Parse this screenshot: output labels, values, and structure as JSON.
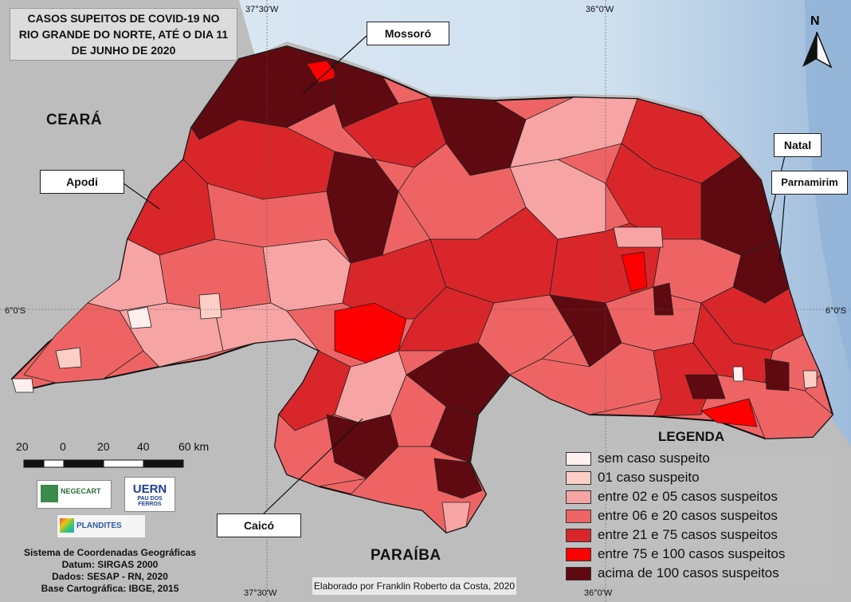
{
  "title_lines": [
    "CASOS SUPEITOS DE COVID-19 NO",
    "RIO GRANDE DO NORTE, ATÉ O DIA 11",
    "DE JUNHO DE 2020"
  ],
  "coordinates": {
    "lon_left_top": "37°30'W",
    "lon_right_top": "36°0'W",
    "lon_left_bottom": "37°30'W",
    "lon_right_bottom": "36°0'W",
    "lat_left": "6°0'S",
    "lat_right": "6°0'S"
  },
  "north_arrow": "N",
  "city_labels": {
    "mossoro": "Mossoró",
    "apodi": "Apodi",
    "natal": "Natal",
    "parnamirim": "Parnamirim",
    "caico": "Caicó"
  },
  "state_labels": {
    "ceara": "CEARÁ",
    "paraiba": "PARAÍBA"
  },
  "legend": {
    "title": "LEGENDA",
    "items": [
      {
        "label": "sem caso suspeito",
        "color": "#fdf0ee"
      },
      {
        "label": "01 caso suspeito",
        "color": "#fbcfc5"
      },
      {
        "label": "entre 02 e 05 casos suspeitos",
        "color": "#f7a4a4"
      },
      {
        "label": "entre 06 e 20 casos suspeitos",
        "color": "#ee6464"
      },
      {
        "label": "entre 21 e 75 casos suspeitos",
        "color": "#d9262a"
      },
      {
        "label": "entre 75 e 100 casos suspeitos",
        "color": "#ff0000"
      },
      {
        "label": "acima de 100 casos suspeitos",
        "color": "#5e0a10"
      }
    ]
  },
  "scale_bar": {
    "labels": [
      "20",
      "0",
      "20",
      "40",
      "60 km"
    ]
  },
  "logos": {
    "negecart": "NEGECART",
    "uern_line1": "UERN",
    "uern_line2": "PAU DOS FERROS",
    "plandites": "PLANDITES"
  },
  "info_lines": [
    "Sistema de Coordenadas Geográficas",
    "Datum: SIRGAS 2000",
    "Dados: SESAP - RN, 2020",
    "Base Cartográfica: IBGE, 2015"
  ],
  "credit": "Elaborado por Franklin Roberto da Costa, 2020"
}
